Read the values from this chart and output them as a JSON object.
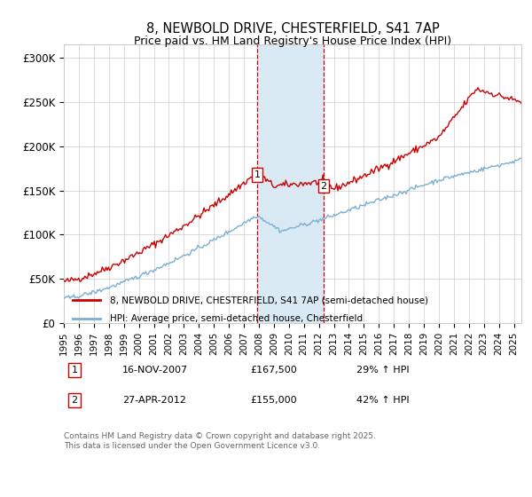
{
  "title": "8, NEWBOLD DRIVE, CHESTERFIELD, S41 7AP",
  "subtitle": "Price paid vs. HM Land Registry's House Price Index (HPI)",
  "ylabel_ticks": [
    "£0",
    "£50K",
    "£100K",
    "£150K",
    "£200K",
    "£250K",
    "£300K"
  ],
  "ylim": [
    0,
    315000
  ],
  "xlim_start": 1995,
  "xlim_end": 2025.5,
  "sale1_date": 2007.88,
  "sale1_price": 167500,
  "sale1_label": "1",
  "sale2_date": 2012.32,
  "sale2_price": 155000,
  "sale2_label": "2",
  "line_red_color": "#cc0000",
  "line_blue_color": "#7ab0d4",
  "shade_color": "#daeaf5",
  "footnote": "Contains HM Land Registry data © Crown copyright and database right 2025.\nThis data is licensed under the Open Government Licence v3.0.",
  "legend1": "8, NEWBOLD DRIVE, CHESTERFIELD, S41 7AP (semi-detached house)",
  "legend2": "HPI: Average price, semi-detached house, Chesterfield",
  "annot1_date": "16-NOV-2007",
  "annot1_price": "£167,500",
  "annot1_hpi": "29% ↑ HPI",
  "annot2_date": "27-APR-2012",
  "annot2_price": "£155,000",
  "annot2_hpi": "42% ↑ HPI"
}
